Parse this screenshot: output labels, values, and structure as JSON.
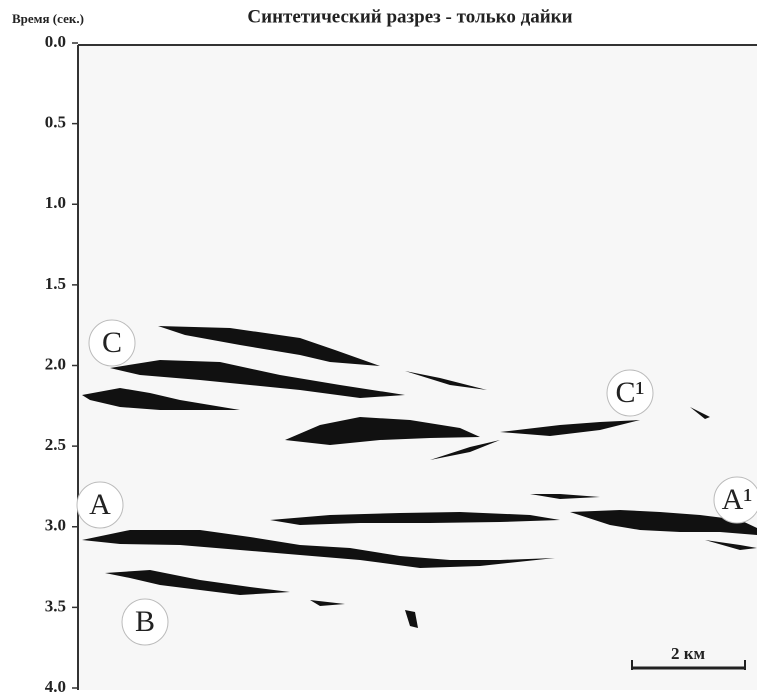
{
  "chart_data": {
    "type": "section",
    "title": "Синтетический разрез - только дайки",
    "y_label": "Время (сек.)",
    "ylim": [
      0,
      4
    ],
    "yticks": [
      {
        "value": 0,
        "label": "0.0"
      },
      0.5,
      {
        "value": 1,
        "label": "1.0"
      },
      1.5,
      {
        "value": 2,
        "label": "2.0"
      },
      2.5,
      {
        "value": 3,
        "label": "3.0"
      },
      3.5,
      {
        "value": 4,
        "label": "4.0"
      }
    ],
    "inverted": true,
    "annotations": [
      "C",
      "C¹",
      "A",
      "A¹",
      "B"
    ],
    "scale_bar": "2 км"
  }
}
